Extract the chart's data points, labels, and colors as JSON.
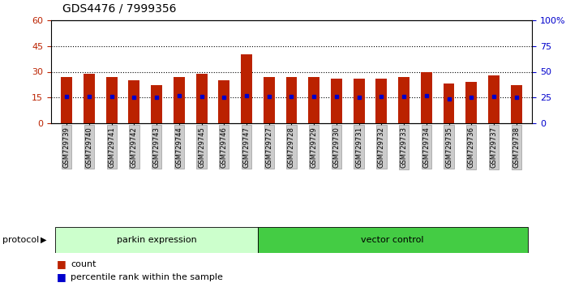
{
  "title": "GDS4476 / 7999356",
  "samples": [
    "GSM729739",
    "GSM729740",
    "GSM729741",
    "GSM729742",
    "GSM729743",
    "GSM729744",
    "GSM729745",
    "GSM729746",
    "GSM729747",
    "GSM729727",
    "GSM729728",
    "GSM729729",
    "GSM729730",
    "GSM729731",
    "GSM729732",
    "GSM729733",
    "GSM729734",
    "GSM729735",
    "GSM729736",
    "GSM729737",
    "GSM729738"
  ],
  "counts": [
    27,
    29,
    27,
    25,
    22,
    27,
    29,
    25,
    40,
    27,
    27,
    27,
    26,
    26,
    26,
    27,
    30,
    23,
    24,
    28,
    22
  ],
  "percentiles": [
    26,
    26,
    26,
    25,
    25,
    27,
    26,
    25,
    27,
    26,
    26,
    26,
    26,
    25,
    26,
    26,
    27,
    24,
    25,
    26,
    25
  ],
  "groups": [
    {
      "label": "parkin expression",
      "start": 0,
      "end": 9,
      "color": "#ccffcc"
    },
    {
      "label": "vector control",
      "start": 9,
      "end": 21,
      "color": "#44cc44"
    }
  ],
  "ylim_left": [
    0,
    60
  ],
  "ylim_right": [
    0,
    100
  ],
  "yticks_left": [
    0,
    15,
    30,
    45,
    60
  ],
  "yticks_right": [
    0,
    25,
    50,
    75,
    100
  ],
  "bar_color": "#bb2200",
  "dot_color": "#0000cc",
  "grid_lines": [
    15,
    30,
    45
  ],
  "protocol_label": "protocol",
  "legend_count_label": "count",
  "legend_pct_label": "percentile rank within the sample"
}
